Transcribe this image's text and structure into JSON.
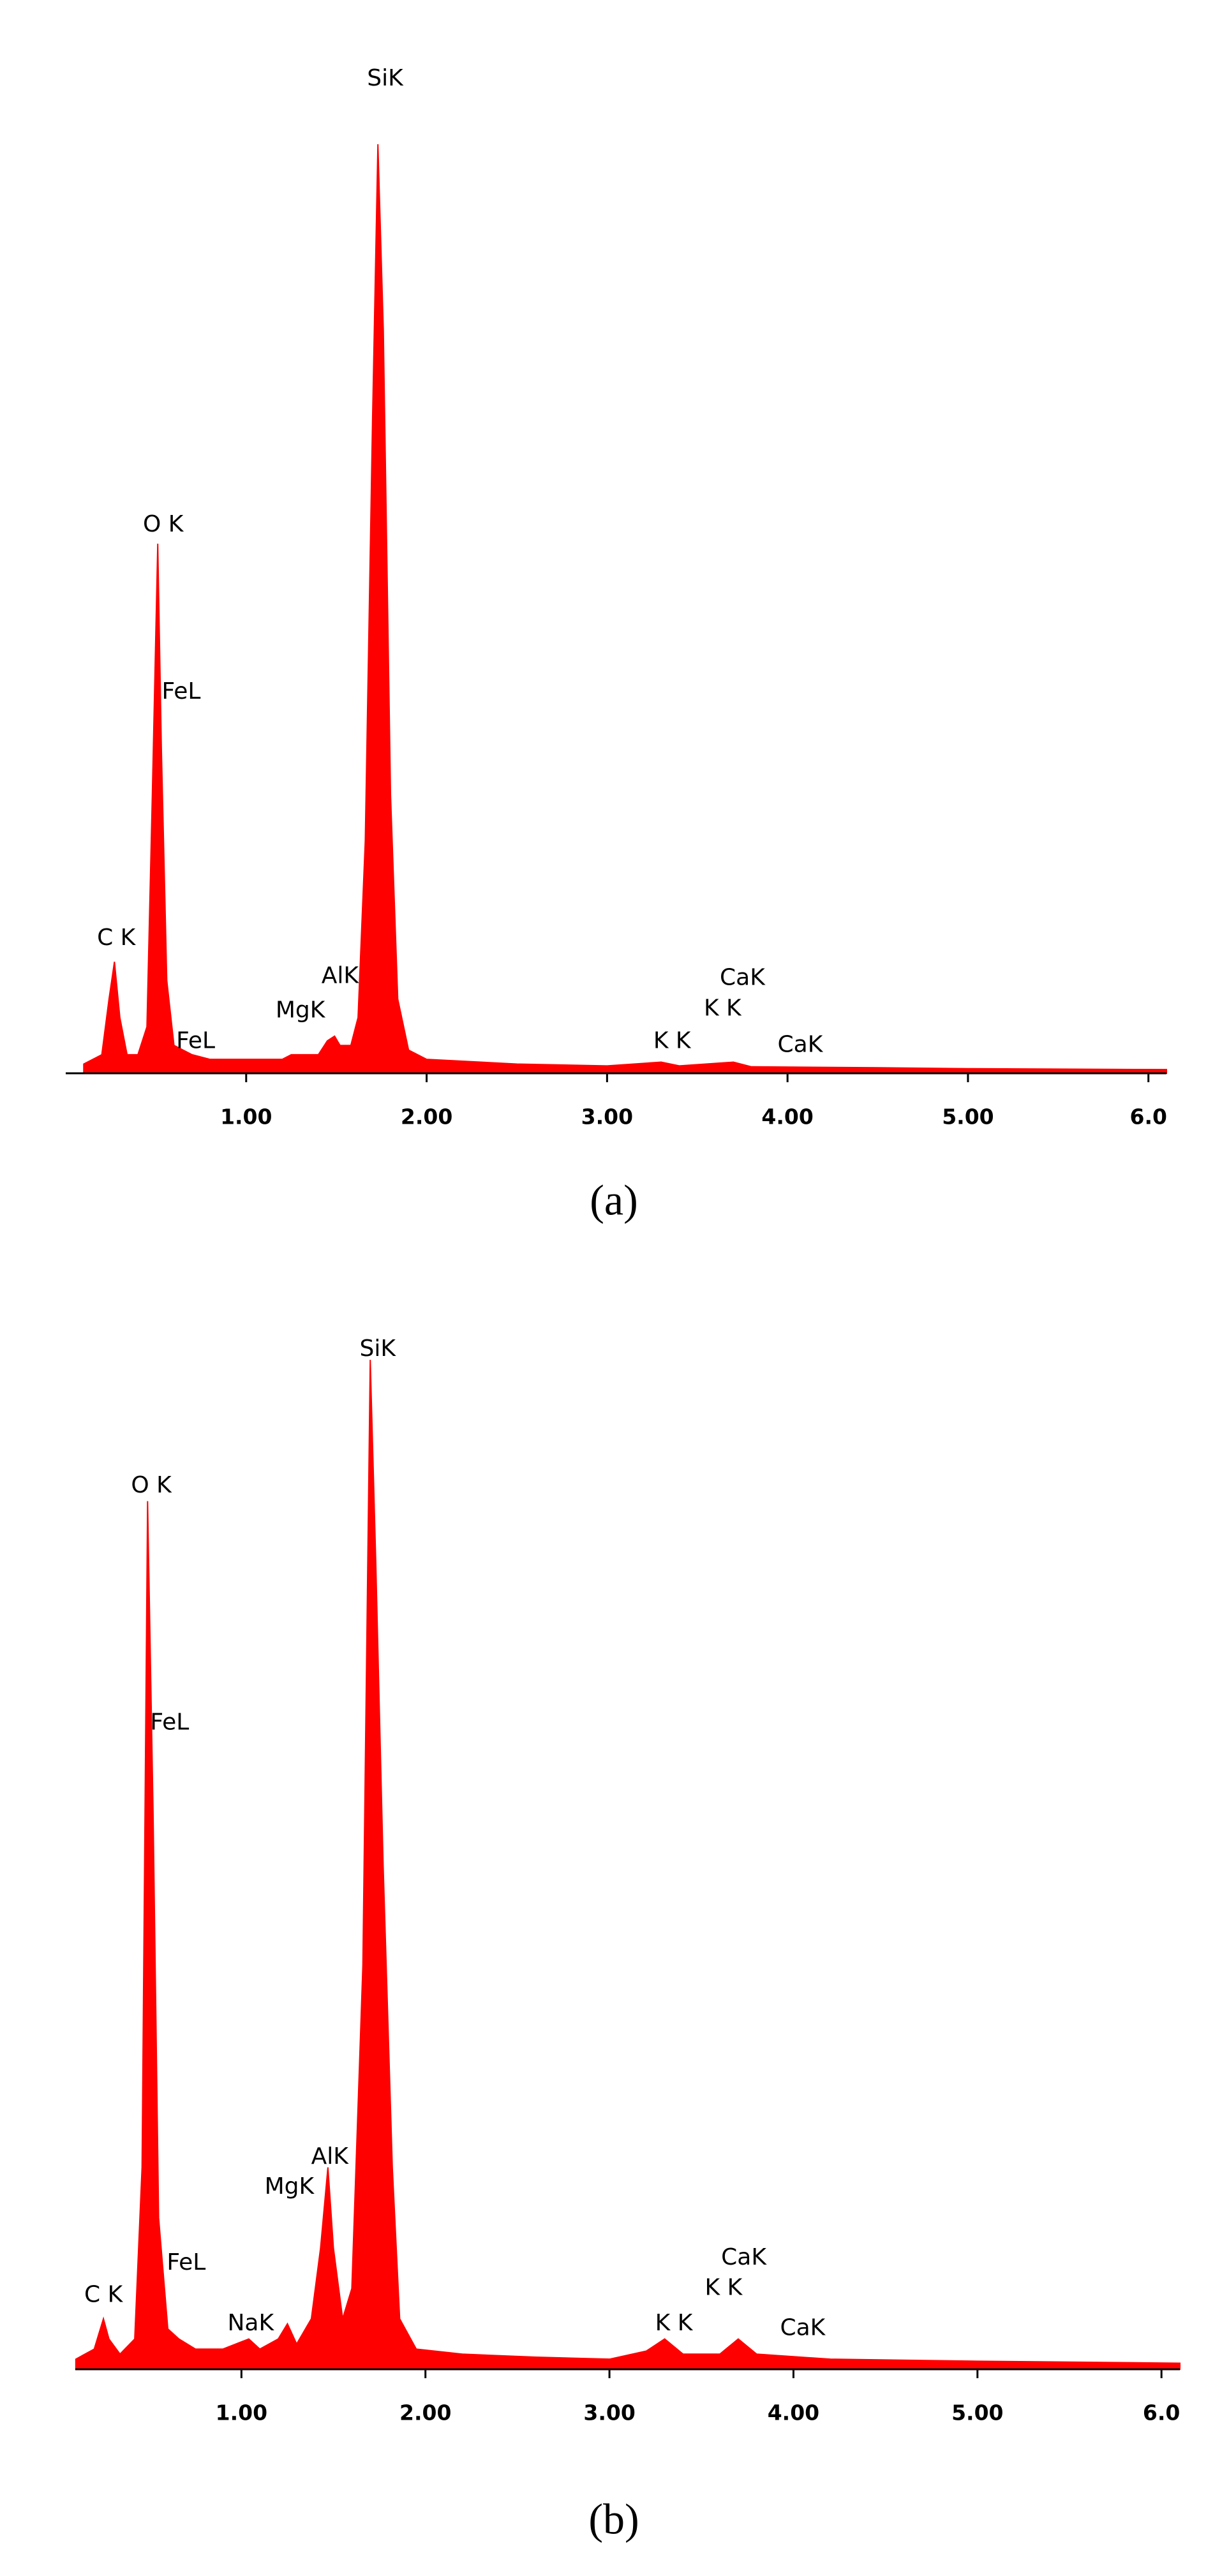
{
  "chart_data": [
    {
      "type": "area",
      "title": "(a)",
      "color": "#ff0000",
      "xlim": [
        0,
        6.1
      ],
      "ylim": [
        0,
        100
      ],
      "xticks": [
        {
          "value": 1,
          "label": "1.00"
        },
        {
          "value": 2,
          "label": "2.00"
        },
        {
          "value": 3,
          "label": "3.00"
        },
        {
          "value": 4,
          "label": "4.00"
        },
        {
          "value": 5,
          "label": "5.00"
        },
        {
          "value": 6,
          "label": "6.0"
        }
      ],
      "x": [
        0.1,
        0.2,
        0.24,
        0.27,
        0.3,
        0.34,
        0.4,
        0.45,
        0.48,
        0.51,
        0.53,
        0.56,
        0.6,
        0.7,
        0.8,
        1.0,
        1.2,
        1.25,
        1.4,
        1.45,
        1.49,
        1.52,
        1.58,
        1.62,
        1.66,
        1.7,
        1.73,
        1.76,
        1.8,
        1.84,
        1.9,
        2.0,
        2.5,
        3.0,
        3.3,
        3.4,
        3.7,
        3.8,
        4.5,
        5.0,
        6.1
      ],
      "values": [
        1,
        2,
        8,
        12,
        6,
        2,
        2,
        5,
        30,
        57,
        35,
        10,
        3,
        2,
        1.5,
        1.5,
        1.5,
        2,
        2,
        3.5,
        4,
        3,
        3,
        6,
        25,
        70,
        100,
        80,
        30,
        8,
        2.5,
        1.5,
        1,
        0.8,
        1.2,
        0.8,
        1.2,
        0.7,
        0.6,
        0.5,
        0.4
      ],
      "annotations": [
        {
          "text": "SiK",
          "x": 1.77,
          "y": 107
        },
        {
          "text": "O K",
          "x": 0.54,
          "y": 59
        },
        {
          "text": "FeL",
          "x": 0.64,
          "y": 41
        },
        {
          "text": "C K",
          "x": 0.28,
          "y": 14.5
        },
        {
          "text": "FeL",
          "x": 0.72,
          "y": 3.4
        },
        {
          "text": "MgK",
          "x": 1.3,
          "y": 6.7
        },
        {
          "text": "AlK",
          "x": 1.52,
          "y": 10.4
        },
        {
          "text": "K K",
          "x": 3.36,
          "y": 3.4
        },
        {
          "text": "K K",
          "x": 3.64,
          "y": 6.9
        },
        {
          "text": "CaK",
          "x": 3.75,
          "y": 10.2
        },
        {
          "text": "CaK",
          "x": 4.07,
          "y": 3
        }
      ]
    },
    {
      "type": "area",
      "title": "(b)",
      "color": "#ff0000",
      "xlim": [
        0,
        6.1
      ],
      "ylim": [
        0,
        100
      ],
      "xticks": [
        {
          "value": 1,
          "label": "1.00"
        },
        {
          "value": 2,
          "label": "2.00"
        },
        {
          "value": 3,
          "label": "3.00"
        },
        {
          "value": 4,
          "label": "4.00"
        },
        {
          "value": 5,
          "label": "5.00"
        },
        {
          "value": 6,
          "label": "6.0"
        }
      ],
      "x": [
        0.1,
        0.2,
        0.25,
        0.28,
        0.34,
        0.42,
        0.46,
        0.49,
        0.52,
        0.55,
        0.6,
        0.66,
        0.75,
        0.9,
        1.04,
        1.1,
        1.2,
        1.25,
        1.3,
        1.38,
        1.43,
        1.47,
        1.5,
        1.55,
        1.6,
        1.66,
        1.7,
        1.73,
        1.77,
        1.82,
        1.86,
        1.95,
        2.2,
        2.6,
        3.0,
        3.2,
        3.3,
        3.4,
        3.6,
        3.7,
        3.8,
        4.2,
        5.0,
        6.1
      ],
      "values": [
        1,
        2,
        5,
        3,
        1.5,
        3,
        20,
        86,
        55,
        15,
        4,
        3,
        2,
        2,
        3,
        2,
        3,
        4.5,
        2.5,
        5,
        12,
        20,
        12,
        5,
        8,
        40,
        100,
        80,
        50,
        20,
        5,
        2,
        1.5,
        1.2,
        1,
        1.8,
        3,
        1.5,
        1.5,
        3,
        1.5,
        1,
        0.8,
        0.6
      ],
      "annotations": [
        {
          "text": "SiK",
          "x": 1.74,
          "y": 101
        },
        {
          "text": "O K",
          "x": 0.51,
          "y": 87.5
        },
        {
          "text": "FeL",
          "x": 0.61,
          "y": 64
        },
        {
          "text": "AlK",
          "x": 1.48,
          "y": 21
        },
        {
          "text": "MgK",
          "x": 1.26,
          "y": 18
        },
        {
          "text": "C K",
          "x": 0.25,
          "y": 7.3
        },
        {
          "text": "FeL",
          "x": 0.7,
          "y": 10.5
        },
        {
          "text": "NaK",
          "x": 1.05,
          "y": 4.5
        },
        {
          "text": "K K",
          "x": 3.35,
          "y": 4.5
        },
        {
          "text": "K K",
          "x": 3.62,
          "y": 8
        },
        {
          "text": "CaK",
          "x": 3.73,
          "y": 11
        },
        {
          "text": "CaK",
          "x": 4.05,
          "y": 4
        }
      ]
    }
  ]
}
